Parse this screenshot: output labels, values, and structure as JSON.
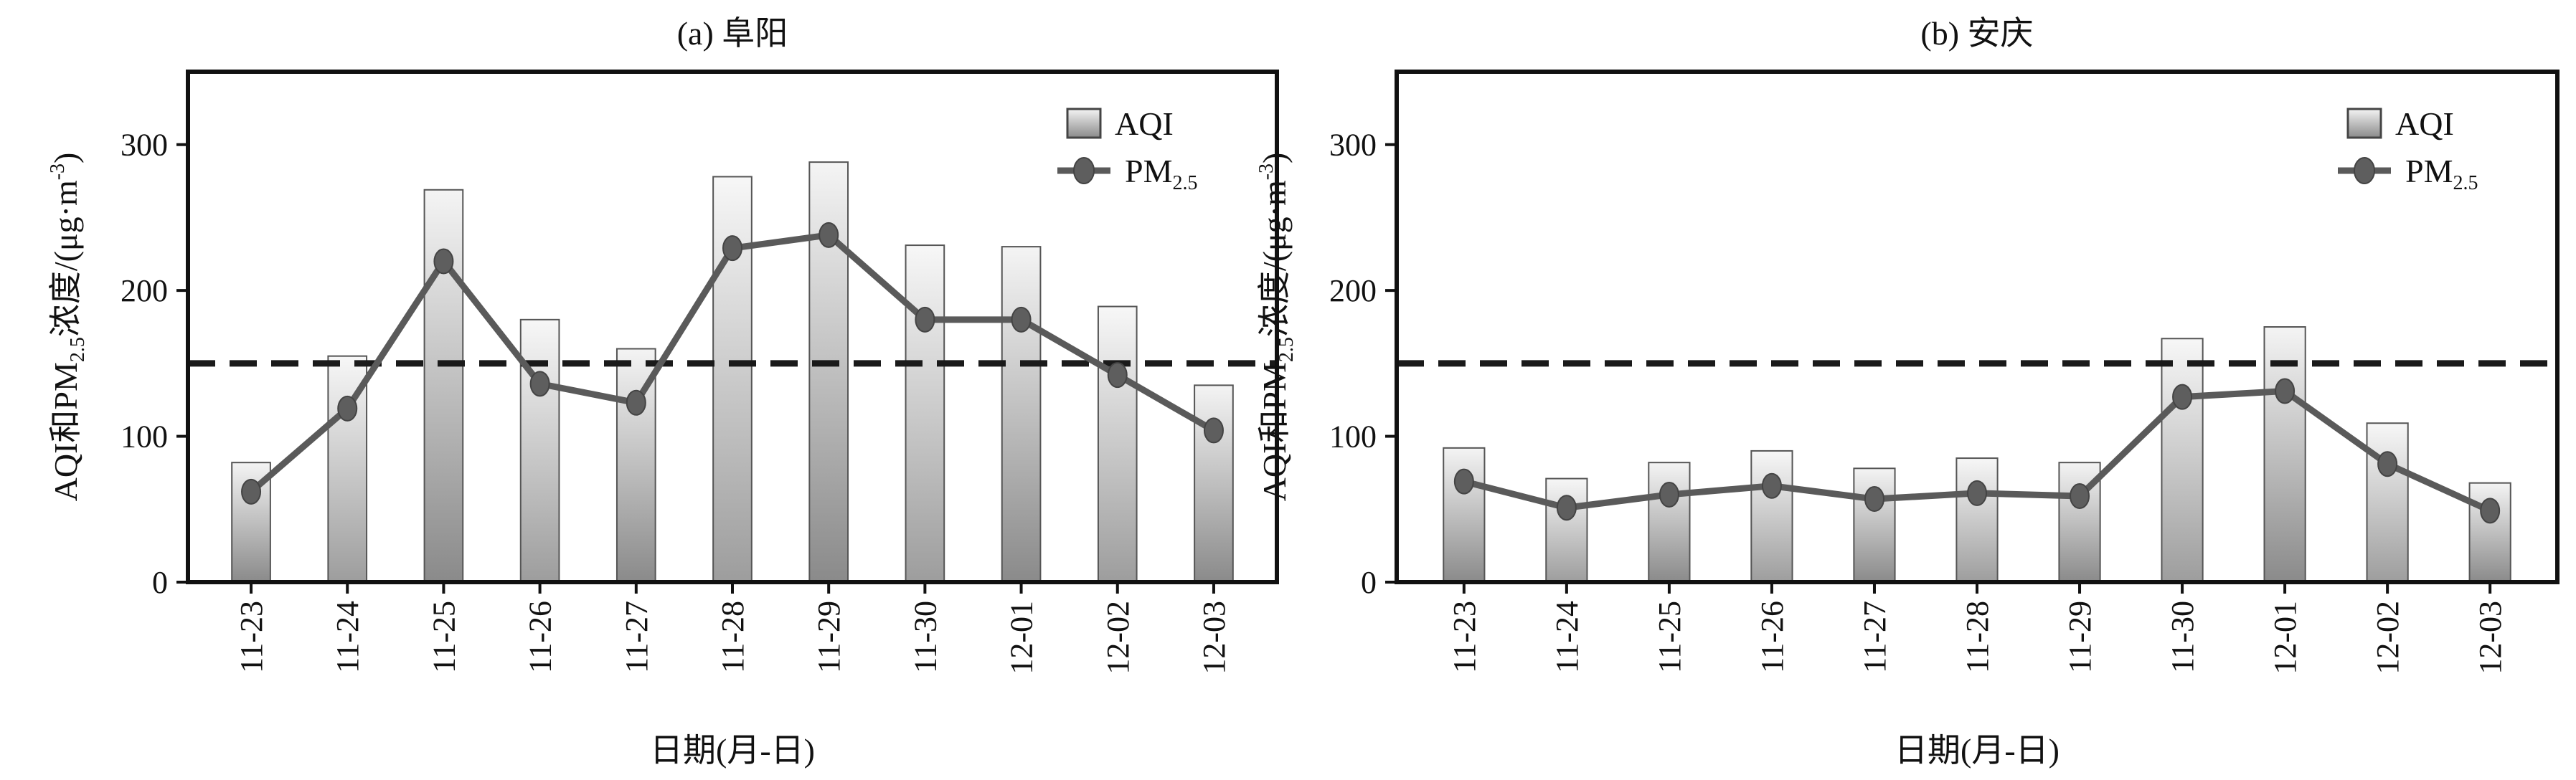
{
  "chart_data": [
    {
      "type": "bar",
      "title": "(a) 阜阳",
      "xlabel": "日期(月-日)",
      "ylabel": "AQI和PM2.5浓度/(μg·m-3)",
      "ylabel_parts": {
        "pre": "AQI和PM",
        "sub": "2.5",
        "mid": "浓度/(μg·m",
        "sup": "-3",
        "post": ")"
      },
      "ylim": [
        0,
        350
      ],
      "yticks": [
        0,
        100,
        200,
        300
      ],
      "categories": [
        "11-23",
        "11-24",
        "11-25",
        "11-26",
        "11-27",
        "11-28",
        "11-29",
        "11-30",
        "12-01",
        "12-02",
        "12-03"
      ],
      "series": [
        {
          "name": "AQI",
          "kind": "bar",
          "values": [
            82,
            155,
            269,
            180,
            160,
            278,
            288,
            231,
            230,
            189,
            135
          ]
        },
        {
          "name": "PM2.5",
          "kind": "line",
          "values": [
            62,
            119,
            220,
            136,
            123,
            229,
            238,
            180,
            180,
            142,
            104
          ]
        }
      ],
      "reference_line": 150,
      "legend": {
        "position": "top-right",
        "aqi_label": "AQI",
        "pm_label": "PM",
        "pm_sub": "2.5"
      }
    },
    {
      "type": "bar",
      "title": "(b) 安庆",
      "xlabel": "日期(月-日)",
      "ylabel": "AQI和PM2.5浓度/(μg·m-3)",
      "ylabel_parts": {
        "pre": "AQI和PM",
        "sub": "2.5",
        "mid": "浓度/(μg·m",
        "sup": "-3",
        "post": ")"
      },
      "ylim": [
        0,
        350
      ],
      "yticks": [
        0,
        100,
        200,
        300
      ],
      "categories": [
        "11-23",
        "11-24",
        "11-25",
        "11-26",
        "11-27",
        "11-28",
        "11-29",
        "11-30",
        "12-01",
        "12-02",
        "12-03"
      ],
      "series": [
        {
          "name": "AQI",
          "kind": "bar",
          "values": [
            92,
            71,
            82,
            90,
            78,
            85,
            82,
            167,
            175,
            109,
            68
          ]
        },
        {
          "name": "PM2.5",
          "kind": "line",
          "values": [
            69,
            51,
            60,
            66,
            57,
            61,
            59,
            127,
            131,
            81,
            49
          ]
        }
      ],
      "reference_line": 150,
      "legend": {
        "position": "top-right",
        "aqi_label": "AQI",
        "pm_label": "PM",
        "pm_sub": "2.5"
      }
    }
  ]
}
